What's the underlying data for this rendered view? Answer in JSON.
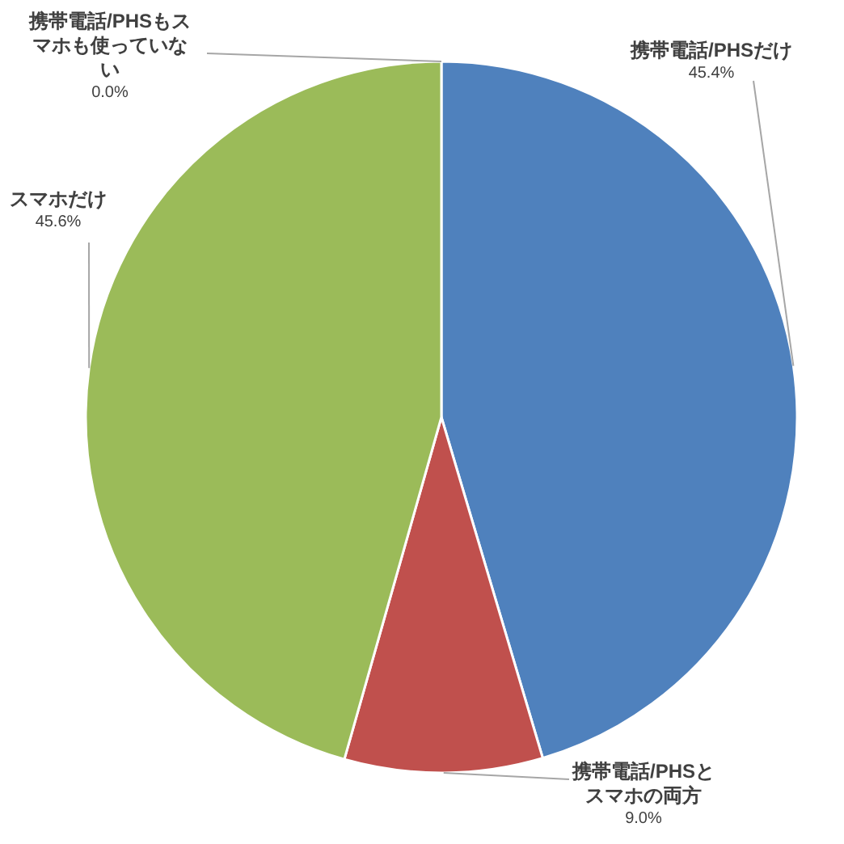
{
  "chart_data": {
    "type": "pie",
    "categories": [
      "携帯電話/PHSだけ",
      "携帯電話/PHSとスマホの両方",
      "スマホだけ",
      "携帯電話/PHSもスマホも使っていない"
    ],
    "values": [
      45.4,
      9.0,
      45.6,
      0.0
    ],
    "colors": [
      "#4f81bd",
      "#c0504d",
      "#9bbb59",
      "#8064a2"
    ],
    "value_labels": [
      "45.4%",
      "9.0%",
      "45.6%",
      "0.0%"
    ]
  }
}
